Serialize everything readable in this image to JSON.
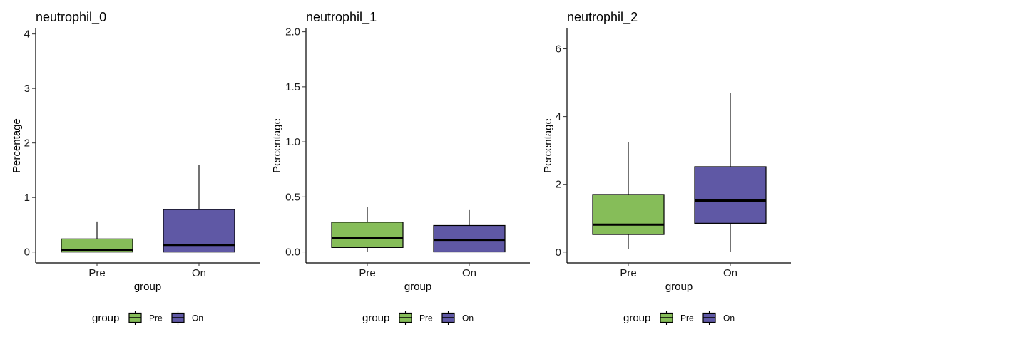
{
  "chart_data": [
    {
      "type": "box",
      "title": "neutrophil_0",
      "xlabel": "group",
      "ylabel": "Percentage",
      "categories": [
        "Pre",
        "On"
      ],
      "ylim": [
        -0.2,
        4.1
      ],
      "yticks": [
        0,
        1,
        2,
        3,
        4
      ],
      "yticklabels": [
        "0",
        "1",
        "2",
        "3",
        "4"
      ],
      "boxes": [
        {
          "group": "Pre",
          "min": 0.0,
          "q1": 0.0,
          "median": 0.04,
          "q3": 0.24,
          "max": 0.56
        },
        {
          "group": "On",
          "min": 0.0,
          "q1": 0.0,
          "median": 0.13,
          "q3": 0.78,
          "max": 1.6
        }
      ],
      "legend": {
        "title": "group",
        "entries": [
          "Pre",
          "On"
        ],
        "position": "bottom"
      }
    },
    {
      "type": "box",
      "title": "neutrophil_1",
      "xlabel": "group",
      "ylabel": "Percentage",
      "categories": [
        "Pre",
        "On"
      ],
      "ylim": [
        -0.1,
        2.03
      ],
      "yticks": [
        0,
        0.5,
        1,
        1.5,
        2
      ],
      "yticklabels": [
        "0.0",
        "0.5",
        "1.0",
        "1.5",
        "2.0"
      ],
      "boxes": [
        {
          "group": "Pre",
          "min": 0.0,
          "q1": 0.04,
          "median": 0.13,
          "q3": 0.27,
          "max": 0.41
        },
        {
          "group": "On",
          "min": 0.0,
          "q1": 0.0,
          "median": 0.11,
          "q3": 0.24,
          "max": 0.38
        }
      ],
      "legend": {
        "title": "group",
        "entries": [
          "Pre",
          "On"
        ],
        "position": "bottom"
      }
    },
    {
      "type": "box",
      "title": "neutrophil_2",
      "xlabel": "group",
      "ylabel": "Percentage",
      "categories": [
        "Pre",
        "On"
      ],
      "ylim": [
        -0.32,
        6.6
      ],
      "yticks": [
        0,
        2,
        4,
        6
      ],
      "yticklabels": [
        "0",
        "2",
        "4",
        "6"
      ],
      "boxes": [
        {
          "group": "Pre",
          "min": 0.08,
          "q1": 0.52,
          "median": 0.81,
          "q3": 1.7,
          "max": 3.25
        },
        {
          "group": "On",
          "min": 0.0,
          "q1": 0.85,
          "median": 1.52,
          "q3": 2.52,
          "max": 4.7
        }
      ],
      "legend": {
        "title": "group",
        "entries": [
          "Pre",
          "On"
        ],
        "position": "bottom"
      }
    }
  ],
  "colors": {
    "Pre": "#86bd59",
    "On": "#5f58a5"
  }
}
